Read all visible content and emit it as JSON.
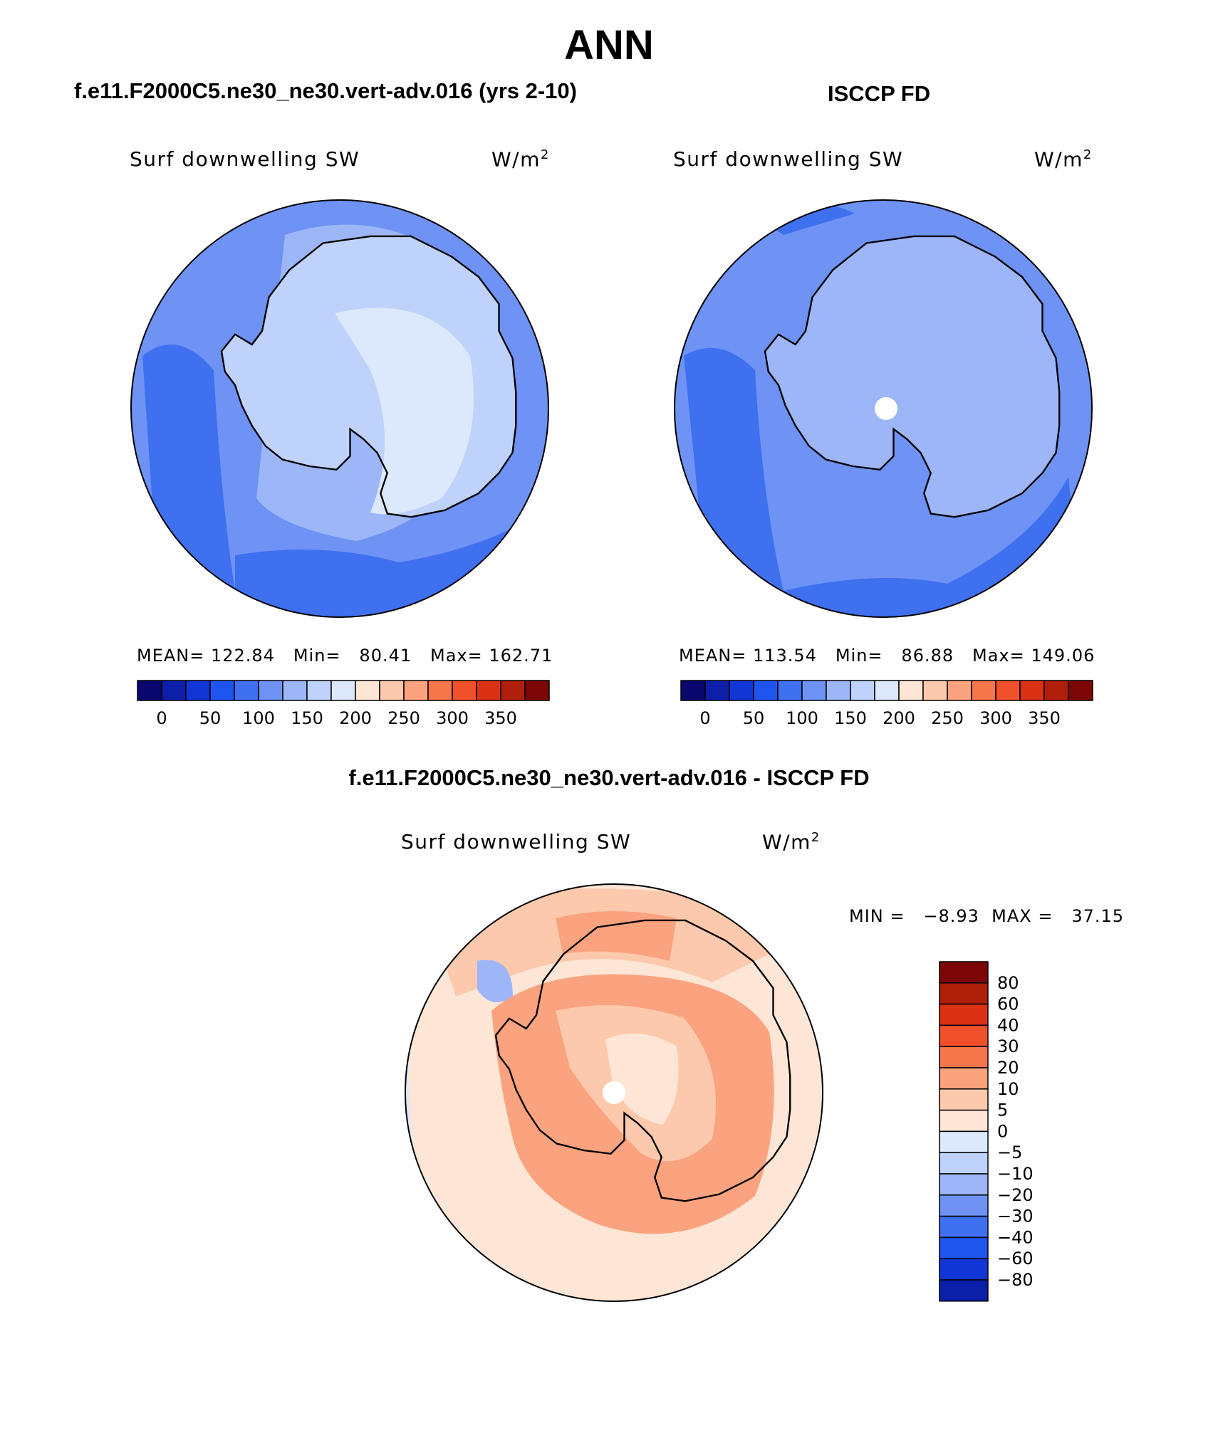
{
  "title": "ANN",
  "panels": {
    "model": {
      "title": "f.e11.F2000C5.ne30_ne30.vert-adv.016 (yrs 2-10)",
      "subtitle": "Surf downwelling SW",
      "units_base": "W/m",
      "units_exp": "2",
      "stats": "MEAN= 122.84   Min=   80.41   Max= 162.71"
    },
    "obs": {
      "title": "ISCCP FD",
      "subtitle": "Surf downwelling SW",
      "units_base": "W/m",
      "units_exp": "2",
      "stats": "MEAN= 113.54   Min=   86.88   Max= 149.06"
    },
    "diff": {
      "title": "f.e11.F2000C5.ne30_ne30.vert-adv.016 - ISCCP FD",
      "subtitle": "Surf downwelling SW",
      "units_base": "W/m",
      "units_exp": "2",
      "stats": "MIN =   −8.93  MAX =   37.15"
    }
  },
  "chart_data": [
    {
      "type": "heatmap",
      "projection": "south polar stereographic",
      "title": "f.e11.F2000C5.ne30_ne30.vert-adv.016 (yrs 2-10)",
      "variable": "Surf downwelling SW",
      "units": "W/m2",
      "mean": 122.84,
      "min": 80.41,
      "max": 162.71,
      "colorbar_levels": [
        "0",
        "50",
        "100",
        "150",
        "200",
        "250",
        "300",
        "350"
      ],
      "colorbar_colors": [
        "#08086e",
        "#0b1fa8",
        "#1236d6",
        "#1e55ef",
        "#3f70f0",
        "#6e93f5",
        "#9cb6f8",
        "#bed2fb",
        "#dce8fc",
        "#fde6d6",
        "#fdc9ad",
        "#fba27e",
        "#f6764c",
        "#f0512a",
        "#da3213",
        "#b01f0a",
        "#7d0707"
      ]
    },
    {
      "type": "heatmap",
      "projection": "south polar stereographic",
      "title": "ISCCP FD",
      "variable": "Surf downwelling SW",
      "units": "W/m2",
      "mean": 113.54,
      "min": 86.88,
      "max": 149.06,
      "colorbar_levels": [
        "0",
        "50",
        "100",
        "150",
        "200",
        "250",
        "300",
        "350"
      ],
      "colorbar_colors": [
        "#08086e",
        "#0b1fa8",
        "#1236d6",
        "#1e55ef",
        "#3f70f0",
        "#6e93f5",
        "#9cb6f8",
        "#bed2fb",
        "#dce8fc",
        "#fde6d6",
        "#fdc9ad",
        "#fba27e",
        "#f6764c",
        "#f0512a",
        "#da3213",
        "#b01f0a",
        "#7d0707"
      ]
    },
    {
      "type": "heatmap",
      "projection": "south polar stereographic",
      "title": "f.e11.F2000C5.ne30_ne30.vert-adv.016 - ISCCP FD",
      "variable": "Surf downwelling SW",
      "units": "W/m2",
      "min": -8.93,
      "max": 37.15,
      "colorbar_levels": [
        "80",
        "60",
        "40",
        "30",
        "20",
        "10",
        "5",
        "0",
        "−5",
        "−10",
        "−20",
        "−30",
        "−40",
        "−60",
        "−80"
      ],
      "colorbar_colors": [
        "#7d0707",
        "#b01f0a",
        "#da3213",
        "#f0512a",
        "#f6764c",
        "#fba27e",
        "#fdc9ad",
        "#fde6d6",
        "#dce8fc",
        "#bed2fb",
        "#9cb6f8",
        "#6e93f5",
        "#3f70f0",
        "#1e55ef",
        "#1236d6",
        "#0b1fa8"
      ]
    }
  ]
}
